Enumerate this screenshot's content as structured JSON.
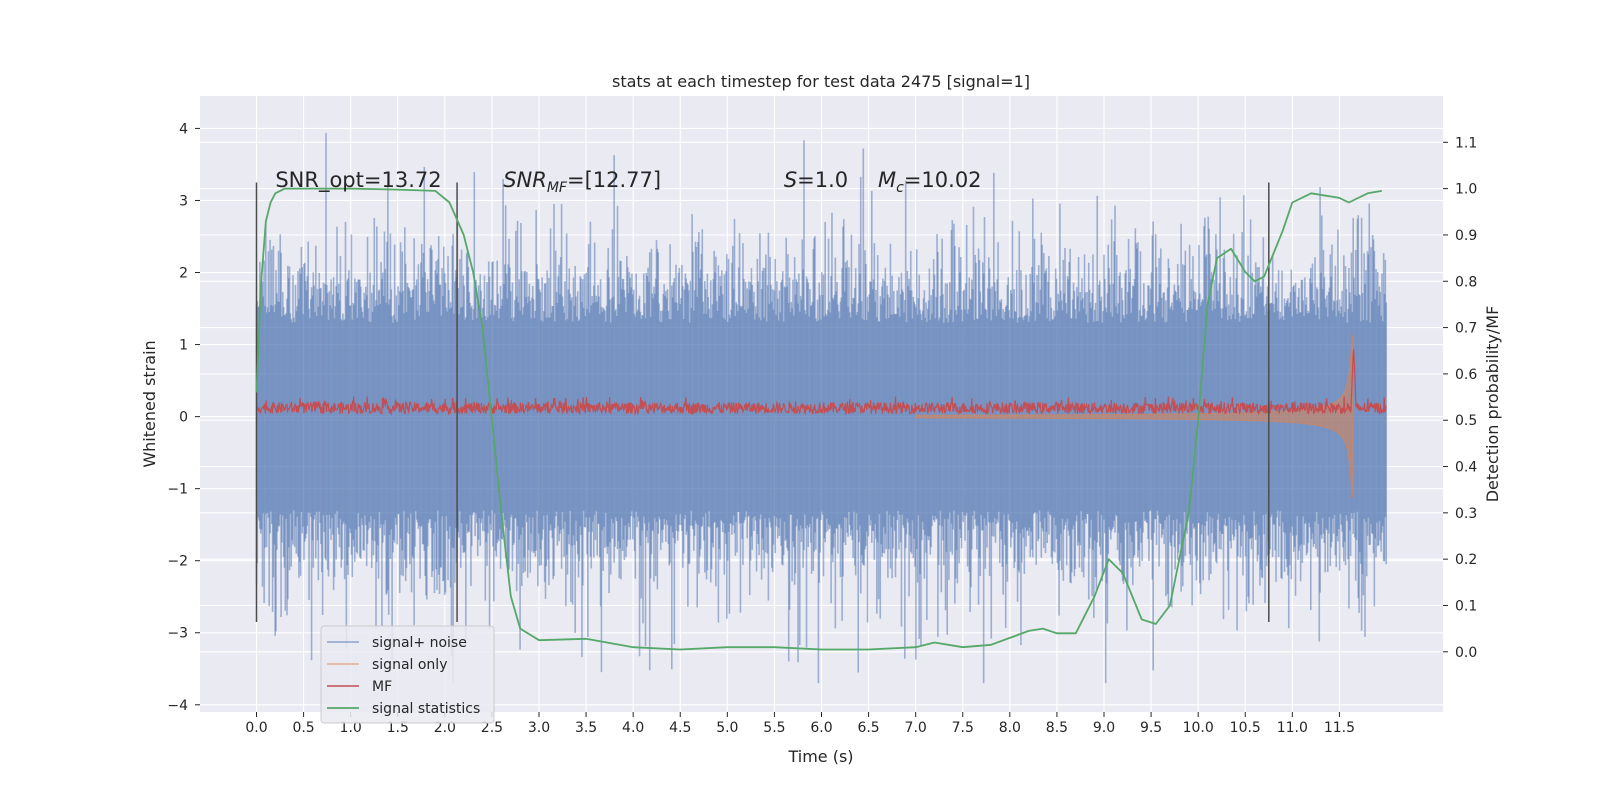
{
  "chart_data": {
    "type": "line",
    "title": "stats at each timestep for test data 2475 [signal=1]",
    "xlabel": "Time (s)",
    "ylabel": "Whitened strain",
    "y2label": "Detection probability/MF",
    "xlim": [
      -0.6,
      12.6
    ],
    "ylim": [
      -4.1,
      4.45
    ],
    "y2lim": [
      -0.13,
      1.2
    ],
    "xticks": [
      0.0,
      0.5,
      1.0,
      1.5,
      2.0,
      2.5,
      3.0,
      3.5,
      4.0,
      4.5,
      5.0,
      5.5,
      6.0,
      6.5,
      7.0,
      7.5,
      8.0,
      8.5,
      9.0,
      9.5,
      10.0,
      10.5,
      11.0,
      11.5
    ],
    "xtick_labels": [
      "0.0",
      "0.5",
      "1.0",
      "1.5",
      "2.0",
      "2.5",
      "3.0",
      "3.5",
      "4.0",
      "4.5",
      "5.0",
      "5.5",
      "6.0",
      "6.5",
      "7.0",
      "7.5",
      "8.0",
      "8.5",
      "9.0",
      "9.5",
      "10.0",
      "10.5",
      "11.0",
      "11.5"
    ],
    "yticks": [
      4,
      3,
      2,
      1,
      0,
      -1,
      -2,
      -3,
      -4
    ],
    "ytick_labels": [
      "4",
      "3",
      "2",
      "1",
      "0",
      "−1",
      "−2",
      "−3",
      "−4"
    ],
    "y2ticks": [
      1.1,
      1.0,
      0.9,
      0.8,
      0.7,
      0.6,
      0.5,
      0.4,
      0.3,
      0.2,
      0.1,
      0.0
    ],
    "y2tick_labels": [
      "1.1",
      "1.0",
      "0.9",
      "0.8",
      "0.7",
      "0.6",
      "0.5",
      "0.4",
      "0.3",
      "0.2",
      "0.1",
      "0.0"
    ],
    "grid": true,
    "legend_position": "lower-left",
    "series": [
      {
        "name": "signal+ noise",
        "color": "#4c72b0",
        "kind": "noise-band",
        "time_range": [
          0.0,
          12.0
        ],
        "typical_amplitude": 1.5,
        "peak_range": [
          -3.7,
          4.1
        ]
      },
      {
        "name": "signal only",
        "color": "#dd8452",
        "kind": "chirp-envelope",
        "time_range": [
          0.0,
          11.65
        ],
        "max_amplitude": 2.0
      },
      {
        "name": "MF",
        "color": "#c44e52",
        "kind": "noise-band",
        "time_range": [
          0.0,
          12.0
        ],
        "typical_range": [
          0.0,
          0.2
        ],
        "peak_time": 11.65,
        "peak_value": 1.0
      },
      {
        "name": "signal statistics",
        "color": "#55a868",
        "kind": "line",
        "x": [
          0.0,
          0.05,
          0.1,
          0.15,
          0.2,
          0.3,
          0.5,
          1.0,
          1.5,
          1.9,
          2.05,
          2.2,
          2.3,
          2.4,
          2.5,
          2.6,
          2.7,
          2.8,
          3.0,
          3.5,
          4.0,
          4.5,
          5.0,
          5.5,
          6.0,
          6.5,
          7.0,
          7.2,
          7.5,
          7.8,
          8.0,
          8.2,
          8.35,
          8.5,
          8.7,
          8.9,
          9.05,
          9.2,
          9.4,
          9.55,
          9.7,
          9.8,
          9.9,
          10.0,
          10.1,
          10.2,
          10.35,
          10.5,
          10.6,
          10.7,
          10.8,
          10.9,
          11.0,
          11.2,
          11.5,
          11.6,
          11.8,
          11.95
        ],
        "y": [
          0.56,
          0.8,
          0.93,
          0.97,
          0.99,
          1.0,
          1.0,
          1.0,
          0.998,
          0.995,
          0.97,
          0.9,
          0.82,
          0.7,
          0.5,
          0.3,
          0.12,
          0.05,
          0.025,
          0.028,
          0.01,
          0.005,
          0.01,
          0.01,
          0.005,
          0.005,
          0.01,
          0.02,
          0.01,
          0.015,
          0.03,
          0.045,
          0.05,
          0.04,
          0.04,
          0.12,
          0.2,
          0.17,
          0.07,
          0.06,
          0.1,
          0.2,
          0.3,
          0.5,
          0.75,
          0.85,
          0.87,
          0.82,
          0.8,
          0.81,
          0.86,
          0.91,
          0.97,
          0.99,
          0.98,
          0.97,
          0.99,
          0.995
        ]
      }
    ],
    "vertical_markers": [
      0.0,
      2.13,
      10.75
    ],
    "annotations": [
      {
        "x": 0.2,
        "y": 3.3,
        "kind": "plain",
        "text": "SNR_opt=13.72"
      },
      {
        "x": 2.62,
        "y": 3.3,
        "kind": "sub",
        "sym": "SNR",
        "sub": "MF",
        "rest": "=[12.77]"
      },
      {
        "x": 5.6,
        "y": 3.3,
        "kind": "sym",
        "sym": "S",
        "rest": "=1.0"
      },
      {
        "x": 6.6,
        "y": 3.3,
        "kind": "sub",
        "sym": "M",
        "sub": "c",
        "rest": "=10.02"
      }
    ]
  }
}
